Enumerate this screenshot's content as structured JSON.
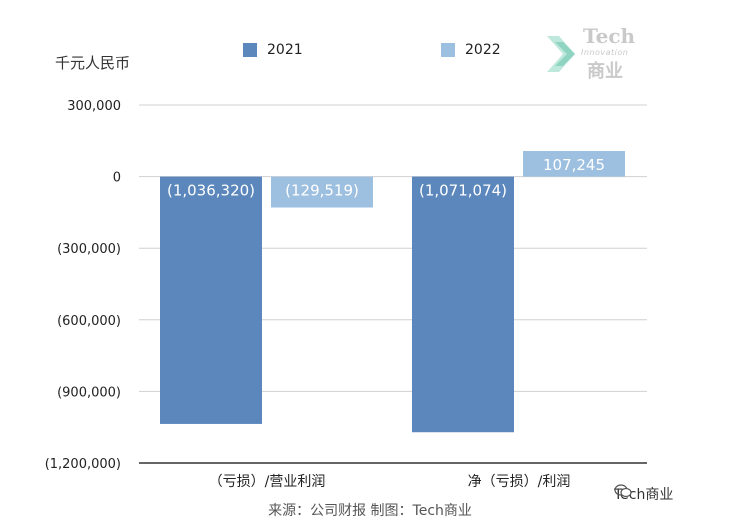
{
  "chart_data": {
    "type": "bar",
    "unit_label": "千元人民币",
    "categories": [
      "（亏损）/营业利润",
      "净（亏损）/利润"
    ],
    "series": [
      {
        "name": "2021",
        "color": "#5b87bd",
        "values": [
          -1036320,
          -1071074
        ],
        "labels": [
          "(1,036,320)",
          "(1,071,074)"
        ]
      },
      {
        "name": "2022",
        "color": "#9dbfe0",
        "values": [
          -129519,
          107245
        ],
        "labels": [
          "(129,519)",
          "107,245"
        ]
      }
    ],
    "ylim": [
      -1200000,
      300000
    ],
    "yticks": [
      300000,
      0,
      -300000,
      -600000,
      -900000,
      -1200000
    ],
    "ytick_labels": [
      "300,000",
      "0",
      "(300,000)",
      "(600,000)",
      "(900,000)",
      "(1,200,000)"
    ],
    "grid": true,
    "legend": "top-center"
  },
  "source": "来源：公司财报 制图：Tech商业",
  "watermark": {
    "tech": "Tech",
    "innovation": "Innovation",
    "cn": "商业"
  },
  "wechat": {
    "name": "Tech商业"
  }
}
